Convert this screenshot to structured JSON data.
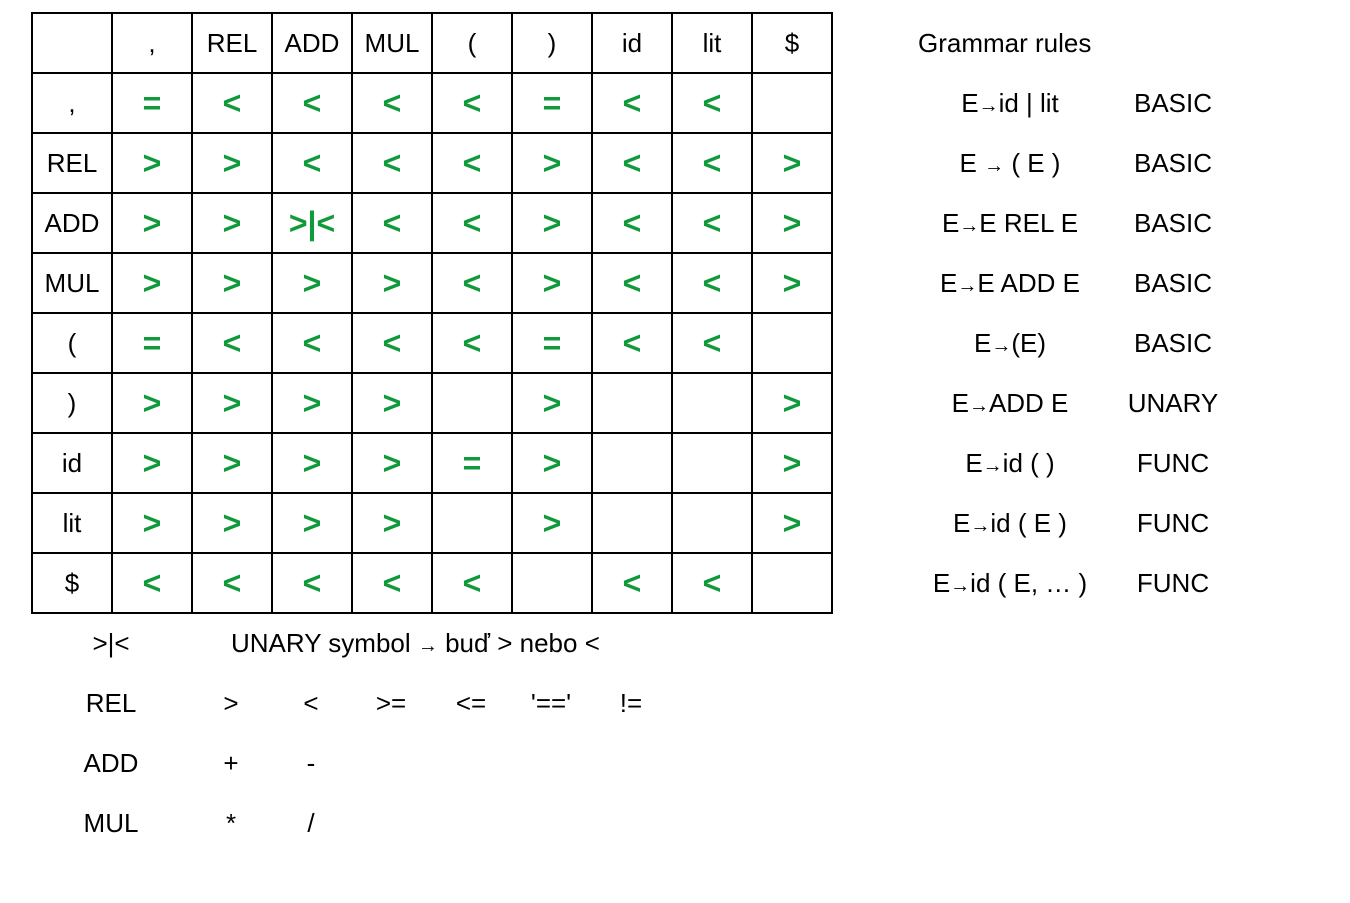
{
  "table": {
    "columns": [
      "",
      ",",
      "REL",
      "ADD",
      "MUL",
      "(",
      ")",
      "id",
      "lit",
      "$"
    ],
    "rows": [
      {
        "label": ",",
        "cells": [
          "=",
          "<",
          "<",
          "<",
          "<",
          "=",
          "<",
          "<",
          ""
        ]
      },
      {
        "label": "REL",
        "cells": [
          ">",
          ">",
          "<",
          "<",
          "<",
          ">",
          "<",
          "<",
          ">"
        ]
      },
      {
        "label": "ADD",
        "cells": [
          ">",
          ">",
          ">|<",
          "<",
          "<",
          ">",
          "<",
          "<",
          ">"
        ]
      },
      {
        "label": "MUL",
        "cells": [
          ">",
          ">",
          ">",
          ">",
          "<",
          ">",
          "<",
          "<",
          ">"
        ]
      },
      {
        "label": "(",
        "cells": [
          "=",
          "<",
          "<",
          "<",
          "<",
          "=",
          "<",
          "<",
          ""
        ]
      },
      {
        "label": ")",
        "cells": [
          ">",
          ">",
          ">",
          ">",
          "",
          ">",
          "",
          "",
          ">"
        ]
      },
      {
        "label": "id",
        "cells": [
          ">",
          ">",
          ">",
          ">",
          "=",
          ">",
          "",
          "",
          ">"
        ]
      },
      {
        "label": "lit",
        "cells": [
          ">",
          ">",
          ">",
          ">",
          "",
          ">",
          "",
          "",
          ">"
        ]
      },
      {
        "label": "$",
        "cells": [
          "<",
          "<",
          "<",
          "<",
          "<",
          "",
          "<",
          "<",
          ""
        ]
      }
    ]
  },
  "grammar": {
    "title": "Grammar rules",
    "rules": [
      {
        "lhs": "E",
        "arrow": "→",
        "rhs": "id | lit",
        "type": "BASIC"
      },
      {
        "lhs": "E ",
        "arrow": "→",
        "rhs": " ( E )",
        "type": "BASIC"
      },
      {
        "lhs": "E",
        "arrow": "→",
        "rhs": "E REL E",
        "type": "BASIC"
      },
      {
        "lhs": "E",
        "arrow": "→",
        "rhs": "E ADD E",
        "type": "BASIC"
      },
      {
        "lhs": "E",
        "arrow": "→",
        "rhs": "(E)",
        "type": "BASIC"
      },
      {
        "lhs": "E",
        "arrow": "→",
        "rhs": "ADD E",
        "type": "UNARY"
      },
      {
        "lhs": "E",
        "arrow": "→",
        "rhs": "id ( )",
        "type": "FUNC"
      },
      {
        "lhs": "E",
        "arrow": "→",
        "rhs": "id ( E )",
        "type": "FUNC"
      },
      {
        "lhs": "E",
        "arrow": "→",
        "rhs": "id ( E, … )",
        "type": "FUNC"
      }
    ]
  },
  "legend": {
    "unary_symbol": ">|<",
    "unary_desc_1": "UNARY symbol ",
    "unary_desc_arrow": "→",
    "unary_desc_2": " buď > nebo <",
    "operators": [
      {
        "name": "REL",
        "symbols": [
          ">",
          "<",
          ">=",
          "<=",
          "'=='",
          "!="
        ]
      },
      {
        "name": "ADD",
        "symbols": [
          "+",
          "-"
        ]
      },
      {
        "name": "MUL",
        "symbols": [
          "*",
          "/"
        ]
      }
    ]
  },
  "colors": {
    "relation": "#109a3c",
    "grid": "#000000"
  }
}
